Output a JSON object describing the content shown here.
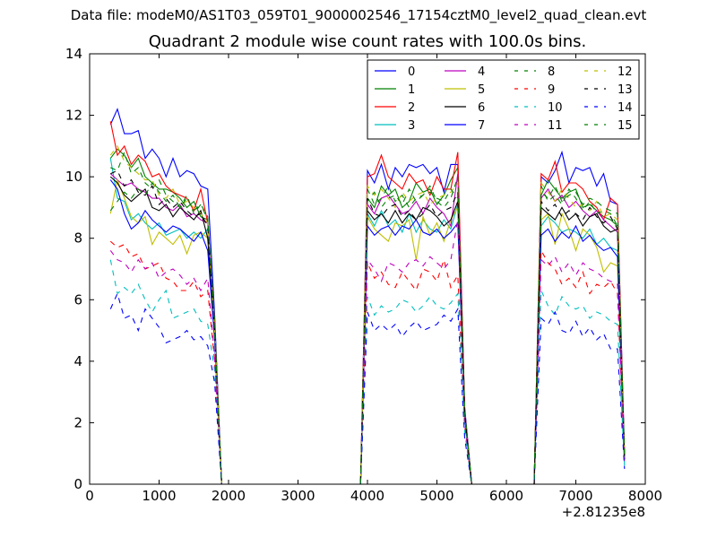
{
  "suptitle": "Data file: modeM0/AS1T03_059T01_9000002546_17154cztM0_level2_quad_clean.evt",
  "chart_data": {
    "type": "line",
    "title": "Quadrant 2 module wise count rates with 100.0s bins.",
    "xlabel": "",
    "ylabel": "",
    "x_offset_label": "+2.81235e8",
    "xlim": [
      0,
      8000
    ],
    "ylim": [
      0,
      14
    ],
    "xticks": [
      "0",
      "1000",
      "2000",
      "3000",
      "4000",
      "5000",
      "6000",
      "7000",
      "8000"
    ],
    "yticks": [
      "0",
      "2",
      "4",
      "6",
      "8",
      "10",
      "12",
      "14"
    ],
    "grid": false,
    "legend_position": "top-right",
    "x": [
      300,
      400,
      500,
      600,
      700,
      800,
      900,
      1000,
      1100,
      1200,
      1300,
      1400,
      1500,
      1600,
      1700,
      1800,
      1900,
      2000,
      3900,
      4000,
      4100,
      4200,
      4300,
      4400,
      4500,
      4600,
      4700,
      4800,
      4900,
      5000,
      5100,
      5200,
      5300,
      5400,
      5500,
      6400,
      6500,
      6600,
      6700,
      6800,
      6900,
      7000,
      7100,
      7200,
      7300,
      7400,
      7500,
      7600,
      7700
    ],
    "series": [
      {
        "name": "0",
        "color": "#0000ff",
        "dash": "solid",
        "values": [
          11.7,
          12.2,
          11.4,
          11.4,
          11.5,
          10.6,
          10.9,
          10.6,
          10.0,
          10.6,
          10.0,
          10.2,
          10.1,
          9.7,
          9.6,
          5.5,
          0,
          0,
          0,
          10.2,
          9.8,
          10.4,
          9.6,
          10.3,
          10.0,
          10.4,
          10.3,
          10.4,
          10.1,
          10.3,
          9.5,
          10.4,
          10.4,
          2.5,
          0,
          0,
          10.0,
          9.8,
          10.2,
          10.8,
          9.8,
          10.3,
          10.2,
          10.3,
          9.7,
          10.1,
          9.2,
          9.1,
          1.0
        ]
      },
      {
        "name": "1",
        "color": "#008000",
        "dash": "solid",
        "values": [
          10.6,
          10.9,
          10.7,
          10.3,
          10.6,
          10.0,
          9.8,
          9.6,
          9.6,
          9.5,
          9.3,
          9.0,
          9.2,
          8.7,
          8.6,
          5.3,
          0,
          0,
          0,
          9.3,
          9.0,
          9.7,
          9.4,
          9.6,
          9.0,
          9.2,
          9.8,
          9.5,
          9.6,
          9.1,
          9.4,
          9.9,
          10.3,
          2.4,
          0,
          0,
          9.4,
          9.9,
          9.6,
          9.3,
          9.5,
          9.6,
          9.0,
          9.1,
          8.9,
          8.7,
          8.6,
          8.4,
          0.9
        ]
      },
      {
        "name": "2",
        "color": "#ff0000",
        "dash": "solid",
        "values": [
          11.8,
          10.7,
          11.0,
          10.4,
          10.7,
          10.5,
          10.0,
          10.1,
          9.7,
          9.5,
          9.4,
          9.3,
          8.9,
          9.6,
          8.5,
          5.2,
          0,
          0,
          0,
          10.0,
          10.1,
          10.7,
          10.0,
          9.8,
          9.6,
          10.1,
          9.8,
          9.9,
          9.4,
          10.0,
          9.6,
          9.6,
          10.8,
          2.4,
          0,
          0,
          10.1,
          9.9,
          10.5,
          9.5,
          9.8,
          9.8,
          9.6,
          9.2,
          9.0,
          8.6,
          9.3,
          9.1,
          0.9
        ]
      },
      {
        "name": "3",
        "color": "#00bfbf",
        "dash": "solid",
        "values": [
          10.6,
          9.3,
          9.2,
          8.6,
          8.8,
          8.5,
          8.3,
          8.5,
          8.1,
          8.2,
          8.3,
          8.0,
          8.2,
          8.0,
          8.3,
          4.8,
          0,
          0,
          0,
          8.8,
          8.4,
          8.9,
          8.4,
          8.6,
          8.2,
          8.8,
          8.2,
          8.6,
          8.3,
          8.2,
          8.6,
          8.3,
          9.1,
          2.3,
          0,
          0,
          8.4,
          8.7,
          8.5,
          8.2,
          8.3,
          8.2,
          8.0,
          8.3,
          7.8,
          8.0,
          7.7,
          7.6,
          0.9
        ]
      },
      {
        "name": "4",
        "color": "#bf00bf",
        "dash": "solid",
        "values": [
          10.1,
          9.9,
          9.7,
          9.8,
          9.6,
          9.5,
          9.3,
          9.3,
          9.0,
          8.9,
          9.1,
          8.7,
          8.8,
          8.6,
          8.5,
          5.1,
          0,
          0,
          0,
          9.1,
          8.8,
          9.3,
          9.4,
          9.1,
          8.8,
          8.9,
          9.2,
          8.8,
          9.3,
          9.0,
          8.8,
          8.4,
          10.1,
          2.4,
          0,
          0,
          9.3,
          9.6,
          9.2,
          9.4,
          9.0,
          9.2,
          8.9,
          8.7,
          8.9,
          8.6,
          8.4,
          8.2,
          0.8
        ]
      },
      {
        "name": "5",
        "color": "#bfbf00",
        "dash": "solid",
        "values": [
          8.8,
          9.9,
          9.3,
          8.7,
          8.5,
          8.7,
          7.8,
          8.2,
          8.0,
          7.8,
          8.1,
          7.5,
          8.1,
          8.2,
          8.0,
          4.9,
          0,
          0,
          0,
          8.7,
          8.3,
          8.1,
          7.9,
          8.5,
          8.4,
          8.6,
          7.3,
          8.7,
          8.1,
          8.5,
          7.9,
          8.6,
          9.0,
          2.2,
          0,
          0,
          8.6,
          8.8,
          7.8,
          8.8,
          8.3,
          7.6,
          8.3,
          8.1,
          7.7,
          6.9,
          7.2,
          7.1,
          0.8
        ]
      },
      {
        "name": "6",
        "color": "#000000",
        "dash": "solid",
        "values": [
          10.0,
          9.8,
          9.4,
          9.2,
          9.4,
          9.6,
          9.0,
          8.9,
          9.1,
          8.7,
          9.0,
          8.8,
          8.6,
          8.9,
          8.0,
          4.9,
          0,
          0,
          0,
          8.9,
          8.6,
          8.8,
          8.5,
          8.9,
          8.5,
          8.8,
          8.6,
          9.0,
          8.9,
          8.7,
          8.4,
          8.6,
          9.2,
          2.3,
          0,
          0,
          9.0,
          8.8,
          8.6,
          9.0,
          8.6,
          8.8,
          8.4,
          8.7,
          8.8,
          8.4,
          8.2,
          8.3,
          0.9
        ]
      },
      {
        "name": "7",
        "color": "#0000ff",
        "dash": "solid",
        "values": [
          9.9,
          9.6,
          8.8,
          8.3,
          8.5,
          8.9,
          8.6,
          8.4,
          8.2,
          8.4,
          8.3,
          8.1,
          7.9,
          8.2,
          7.6,
          4.7,
          0,
          0,
          0,
          8.4,
          8.1,
          8.3,
          8.4,
          8.1,
          8.4,
          8.3,
          8.6,
          8.2,
          8.1,
          8.3,
          8.0,
          8.2,
          8.5,
          2.2,
          0,
          0,
          8.1,
          8.3,
          7.9,
          8.2,
          8.0,
          8.4,
          7.9,
          8.1,
          7.8,
          7.6,
          7.7,
          7.4,
          0.8
        ]
      },
      {
        "name": "8",
        "color": "#008000",
        "dash": "dashed",
        "values": [
          10.3,
          10.2,
          10.8,
          10.1,
          10.3,
          9.8,
          9.6,
          9.9,
          9.4,
          9.2,
          9.0,
          9.4,
          8.8,
          9.1,
          8.6,
          5.2,
          0,
          0,
          0,
          9.6,
          9.1,
          9.3,
          9.7,
          9.2,
          9.4,
          9.0,
          9.3,
          9.4,
          9.7,
          9.2,
          9.0,
          9.3,
          10.0,
          2.4,
          0,
          0,
          9.7,
          9.2,
          9.4,
          9.1,
          9.6,
          9.3,
          8.9,
          9.2,
          8.8,
          8.9,
          8.8,
          8.4,
          0.9
        ]
      },
      {
        "name": "9",
        "color": "#ff0000",
        "dash": "dashed",
        "values": [
          7.9,
          7.7,
          7.8,
          7.4,
          7.5,
          7.0,
          7.1,
          7.2,
          6.7,
          6.6,
          6.3,
          6.3,
          6.6,
          6.1,
          6.3,
          4.0,
          0,
          0,
          0,
          7.2,
          6.7,
          6.9,
          6.5,
          6.4,
          6.9,
          6.6,
          6.3,
          7.0,
          6.9,
          6.6,
          7.3,
          6.4,
          6.8,
          1.9,
          0,
          0,
          7.6,
          7.2,
          7.0,
          6.5,
          6.7,
          6.4,
          6.9,
          6.2,
          6.5,
          6.4,
          6.6,
          6.2,
          0.7
        ]
      },
      {
        "name": "10",
        "color": "#00bfbf",
        "dash": "dashed",
        "values": [
          7.3,
          6.2,
          6.4,
          6.2,
          6.5,
          6.0,
          5.6,
          6.0,
          6.3,
          5.4,
          5.5,
          5.6,
          5.7,
          5.3,
          5.2,
          3.7,
          0,
          0,
          0,
          6.1,
          5.5,
          5.8,
          5.6,
          5.7,
          6.0,
          5.9,
          5.6,
          5.8,
          6.1,
          5.8,
          5.7,
          5.9,
          6.2,
          1.7,
          0,
          0,
          6.3,
          5.8,
          5.5,
          6.1,
          5.8,
          5.7,
          5.8,
          5.4,
          5.6,
          5.5,
          5.3,
          5.2,
          0.6
        ]
      },
      {
        "name": "11",
        "color": "#bf00bf",
        "dash": "dashed",
        "values": [
          7.6,
          7.3,
          7.2,
          6.9,
          7.3,
          7.0,
          7.2,
          6.7,
          6.9,
          7.0,
          6.8,
          6.5,
          6.7,
          6.3,
          6.7,
          4.1,
          0,
          0,
          0,
          7.3,
          7.0,
          6.6,
          7.2,
          7.1,
          6.9,
          7.2,
          7.3,
          7.1,
          7.4,
          7.2,
          7.0,
          7.3,
          8.6,
          2.0,
          0,
          0,
          7.3,
          7.1,
          7.4,
          6.9,
          7.2,
          6.8,
          7.2,
          7.0,
          6.9,
          6.7,
          6.6,
          6.5,
          0.7
        ]
      },
      {
        "name": "12",
        "color": "#bfbf00",
        "dash": "dashed",
        "values": [
          10.7,
          11.0,
          10.5,
          10.3,
          10.1,
          9.9,
          9.9,
          9.4,
          9.3,
          9.6,
          9.1,
          9.2,
          9.0,
          8.8,
          8.5,
          5.0,
          0,
          0,
          0,
          9.7,
          9.4,
          9.6,
          9.3,
          9.0,
          9.5,
          9.2,
          9.4,
          9.5,
          9.1,
          9.3,
          9.4,
          9.5,
          9.8,
          2.3,
          0,
          0,
          9.8,
          9.5,
          9.2,
          9.6,
          9.3,
          9.0,
          9.1,
          8.9,
          9.2,
          8.7,
          8.8,
          8.6,
          0.8
        ]
      },
      {
        "name": "13",
        "color": "#000000",
        "dash": "dashed",
        "values": [
          10.1,
          10.2,
          9.7,
          9.9,
          9.5,
          9.4,
          9.7,
          9.1,
          9.3,
          9.0,
          9.2,
          8.9,
          8.7,
          8.8,
          8.4,
          5.0,
          0,
          0,
          0,
          9.3,
          8.8,
          8.7,
          9.0,
          9.1,
          8.7,
          8.9,
          8.6,
          8.8,
          9.1,
          8.7,
          8.9,
          9.0,
          9.5,
          2.3,
          0,
          0,
          9.2,
          8.9,
          9.1,
          8.7,
          8.9,
          8.8,
          8.6,
          9.0,
          8.7,
          8.5,
          8.7,
          8.3,
          0.8
        ]
      },
      {
        "name": "14",
        "color": "#0000ff",
        "dash": "dashed",
        "values": [
          5.7,
          6.2,
          5.4,
          5.5,
          5.0,
          5.7,
          5.4,
          5.1,
          4.6,
          4.7,
          4.8,
          5.0,
          4.7,
          4.8,
          4.5,
          3.3,
          0,
          0,
          0,
          5.6,
          5.0,
          5.2,
          5.0,
          5.2,
          4.8,
          5.1,
          5.3,
          5.0,
          5.1,
          5.2,
          5.5,
          5.3,
          5.7,
          1.5,
          0,
          0,
          5.4,
          5.2,
          5.6,
          5.0,
          4.9,
          5.3,
          4.8,
          5.1,
          4.7,
          4.9,
          4.4,
          4.4,
          0.5
        ]
      },
      {
        "name": "15",
        "color": "#008000",
        "dash": "dashed",
        "values": [
          8.9,
          9.2,
          9.5,
          9.3,
          9.6,
          9.4,
          9.8,
          9.5,
          9.2,
          9.4,
          9.0,
          9.3,
          8.9,
          9.1,
          8.7,
          5.0,
          0,
          0,
          0,
          9.2,
          9.5,
          9.0,
          9.3,
          9.4,
          9.1,
          9.6,
          9.2,
          9.4,
          9.5,
          9.3,
          9.2,
          9.6,
          9.3,
          2.3,
          0,
          0,
          9.5,
          9.3,
          9.7,
          9.2,
          9.4,
          9.5,
          9.1,
          9.3,
          9.2,
          9.0,
          8.9,
          8.8,
          0.8
        ]
      }
    ]
  }
}
